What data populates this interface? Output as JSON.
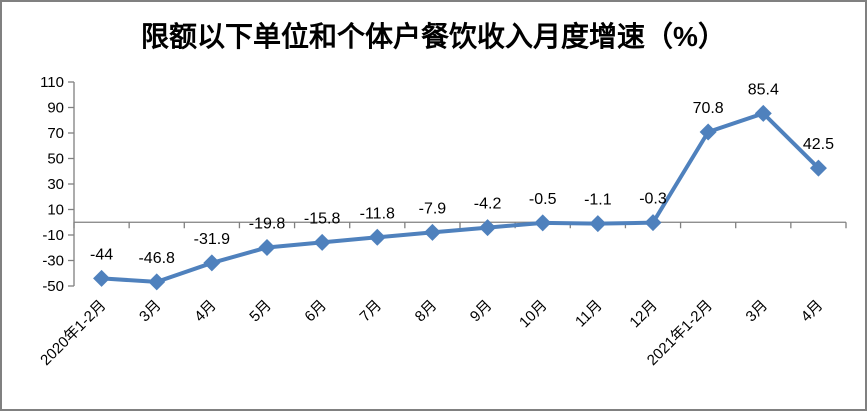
{
  "frame": {
    "background": "#FFFFFF",
    "border_color": "#808080"
  },
  "chart_data": {
    "type": "line",
    "title": "限额以下单位和个体户餐饮收入月度增速（%）",
    "categories": [
      "2020年1-2月",
      "3月",
      "4月",
      "5月",
      "6月",
      "7月",
      "8月",
      "9月",
      "10月",
      "11月",
      "12月",
      "2021年1-2月",
      "3月",
      "4月"
    ],
    "values": [
      -44,
      -46.8,
      -31.9,
      -19.8,
      -15.8,
      -11.8,
      -7.9,
      -4.2,
      -0.5,
      -1.1,
      -0.3,
      70.8,
      85.4,
      42.5
    ],
    "data_labels": [
      "-44",
      "-46.8",
      "-31.9",
      "-19.8",
      "-15.8",
      "-11.8",
      "-7.9",
      "-4.2",
      "-0.5",
      "-1.1",
      "-0.3",
      "70.8",
      "85.4",
      "42.5"
    ],
    "y_ticks": [
      110,
      90,
      70,
      50,
      30,
      10,
      -10,
      -30,
      -50
    ],
    "ylim": [
      -50,
      110
    ],
    "xlabel": "",
    "ylabel": "",
    "grid": false,
    "legend": false,
    "marker": "diamond",
    "series_color": "#4F81BD",
    "axis_color": "#808080",
    "label_color": "#000000"
  }
}
